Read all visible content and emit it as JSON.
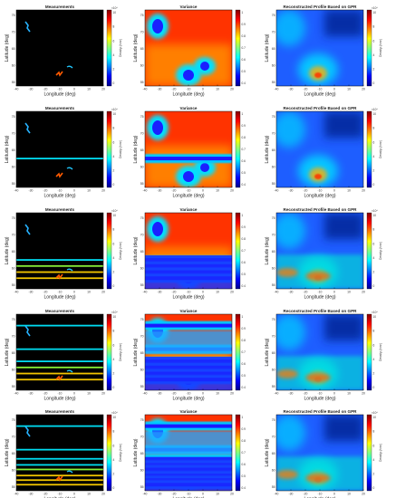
{
  "figure": {
    "colormap": "jet",
    "background": "#ffffff"
  },
  "chart_data": [
    {
      "type": "heatmap",
      "row": 1,
      "title": "Measurements",
      "xlabel": "Longitude (deg)",
      "ylabel": "Latitude (deg)",
      "xticks": [
        "-40",
        "-30",
        "-20",
        "-10",
        "0",
        "10",
        "20"
      ],
      "yticks": [
        "75",
        "70",
        "65",
        "60",
        "55"
      ],
      "colorbar": {
        "ticks": [
          "10",
          "8",
          "6",
          "4",
          "2",
          "0"
        ],
        "label": "Density (/cm³)",
        "exponent": "×10⁴"
      },
      "scan_lines": [],
      "features": [
        {
          "name": "patch-northwest",
          "color": "cyan"
        },
        {
          "name": "patch-center",
          "color": "red"
        },
        {
          "name": "patch-east",
          "color": "cyan"
        }
      ]
    },
    {
      "type": "heatmap",
      "row": 1,
      "title": "Variance",
      "xlabel": "Longitude (deg)",
      "ylabel": "Latitude (deg)",
      "xticks": [
        "-40",
        "-30",
        "-20",
        "-10",
        "0",
        "10",
        "20"
      ],
      "yticks": [
        "75",
        "70",
        "65",
        "60",
        "55"
      ],
      "colorbar": {
        "ticks": [
          "1",
          "0.9",
          "0.8",
          "0.7",
          "0.6",
          "0.5",
          "0.4"
        ],
        "label": "",
        "exponent": ""
      },
      "pattern": "high variance everywhere except near measured patches"
    },
    {
      "type": "heatmap",
      "row": 1,
      "title": "Reconstructed Profile Based on GPR",
      "xlabel": "Longitude (deg)",
      "ylabel": "Latitude (deg)",
      "xticks": [
        "-40",
        "-30",
        "-20",
        "-10",
        "0",
        "10",
        "20"
      ],
      "yticks": [
        "75",
        "70",
        "65",
        "60",
        "55"
      ],
      "colorbar": {
        "ticks": [
          "10",
          "8",
          "6",
          "4",
          "2",
          "0"
        ],
        "label": "Density (/cm³)",
        "exponent": "×10⁴"
      }
    },
    {
      "type": "heatmap",
      "row": 2,
      "title": "Measurements",
      "xlabel": "Longitude (deg)",
      "ylabel": "Latitude (deg)",
      "xticks": [
        "-40",
        "-30",
        "-20",
        "-10",
        "0",
        "10",
        "20"
      ],
      "yticks": [
        "75",
        "70",
        "65",
        "60",
        "55"
      ],
      "colorbar": {
        "ticks": [
          "10",
          "8",
          "6",
          "4",
          "2",
          "0"
        ],
        "label": "Density (/cm³)",
        "exponent": "×10⁴"
      },
      "scan_lines": [
        0.62
      ]
    },
    {
      "type": "heatmap",
      "row": 2,
      "title": "Variance",
      "xlabel": "Longitude (deg)",
      "ylabel": "Latitude (deg)",
      "xticks": [
        "-40",
        "-30",
        "-20",
        "-10",
        "0",
        "10",
        "20"
      ],
      "yticks": [
        "75",
        "70",
        "65",
        "60",
        "55"
      ],
      "colorbar": {
        "ticks": [
          "1",
          "0.9",
          "0.8",
          "0.7",
          "0.6",
          "0.5",
          "0.4"
        ],
        "label": "",
        "exponent": ""
      }
    },
    {
      "type": "heatmap",
      "row": 2,
      "title": "Reconstructed Profile Based on GPR",
      "xlabel": "Longitude (deg)",
      "ylabel": "Latitude (deg)",
      "xticks": [
        "-40",
        "-30",
        "-20",
        "-10",
        "0",
        "10",
        "20"
      ],
      "yticks": [
        "75",
        "70",
        "65",
        "60",
        "55"
      ],
      "colorbar": {
        "ticks": [
          "10",
          "8",
          "6",
          "4",
          "2",
          "0"
        ],
        "label": "Density (/cm³)",
        "exponent": "×10⁴"
      }
    },
    {
      "type": "heatmap",
      "row": 3,
      "title": "Measurements",
      "xlabel": "Longitude (deg)",
      "ylabel": "Latitude (deg)",
      "xticks": [
        "-40",
        "-30",
        "-20",
        "-10",
        "0",
        "10",
        "20"
      ],
      "yticks": [
        "75",
        "70",
        "65",
        "60",
        "55"
      ],
      "colorbar": {
        "ticks": [
          "10",
          "8",
          "6",
          "4",
          "2",
          "0"
        ],
        "label": "Density (/cm³)",
        "exponent": "×10⁴"
      },
      "scan_lines": [
        0.62,
        0.7,
        0.78,
        0.86
      ]
    },
    {
      "type": "heatmap",
      "row": 3,
      "title": "Variance",
      "xlabel": "Longitude (deg)",
      "ylabel": "Latitude (deg)",
      "xticks": [
        "-40",
        "-30",
        "-20",
        "-10",
        "0",
        "10",
        "20"
      ],
      "yticks": [
        "75",
        "70",
        "65",
        "60",
        "55"
      ],
      "colorbar": {
        "ticks": [
          "1",
          "0.9",
          "0.8",
          "0.7",
          "0.6",
          "0.5",
          "0.4"
        ],
        "label": "",
        "exponent": ""
      }
    },
    {
      "type": "heatmap",
      "row": 3,
      "title": "Reconstructed Profile Based on GPR",
      "xlabel": "Longitude (deg)",
      "ylabel": "Latitude (deg)",
      "xticks": [
        "-40",
        "-30",
        "-20",
        "-10",
        "0",
        "10",
        "20"
      ],
      "yticks": [
        "75",
        "70",
        "65",
        "60",
        "55"
      ],
      "colorbar": {
        "ticks": [
          "10",
          "8",
          "6",
          "4",
          "2",
          "0"
        ],
        "label": "Density (/cm³)",
        "exponent": "×10⁴"
      }
    },
    {
      "type": "heatmap",
      "row": 4,
      "title": "Measurements",
      "xlabel": "Longitude (deg)",
      "ylabel": "Latitude (deg)",
      "xticks": [
        "-40",
        "-30",
        "-20",
        "-10",
        "0",
        "10",
        "20"
      ],
      "yticks": [
        "75",
        "70",
        "65",
        "60",
        "55"
      ],
      "colorbar": {
        "ticks": [
          "10",
          "8",
          "6",
          "4",
          "2",
          "0"
        ],
        "label": "Density (/cm³)",
        "exponent": "×10⁴"
      },
      "scan_lines": [
        0.15,
        0.46,
        0.62,
        0.7,
        0.78,
        0.86
      ]
    },
    {
      "type": "heatmap",
      "row": 4,
      "title": "Variance",
      "xlabel": "Longitude (deg)",
      "ylabel": "Latitude (deg)",
      "xticks": [
        "-40",
        "-30",
        "-20",
        "-10",
        "0",
        "10",
        "20"
      ],
      "yticks": [
        "75",
        "70",
        "65",
        "60",
        "55"
      ],
      "colorbar": {
        "ticks": [
          "1",
          "0.9",
          "0.8",
          "0.7",
          "0.6",
          "0.5",
          "0.4"
        ],
        "label": "",
        "exponent": ""
      }
    },
    {
      "type": "heatmap",
      "row": 4,
      "title": "Reconstructed Profile Based on GPR",
      "xlabel": "Longitude (deg)",
      "ylabel": "Latitude (deg)",
      "xticks": [
        "-40",
        "-30",
        "-20",
        "-10",
        "0",
        "10",
        "20"
      ],
      "yticks": [
        "75",
        "70",
        "65",
        "60",
        "55"
      ],
      "colorbar": {
        "ticks": [
          "10",
          "8",
          "6",
          "4",
          "2",
          "0"
        ],
        "label": "Density (/cm³)",
        "exponent": "×10⁴"
      }
    },
    {
      "type": "heatmap",
      "row": 5,
      "title": "Measurements",
      "xlabel": "Longitude (deg)",
      "ylabel": "Latitude (deg)",
      "xticks": [
        "-40",
        "-30",
        "-20",
        "-10",
        "0",
        "10",
        "20"
      ],
      "yticks": [
        "75",
        "70",
        "65",
        "60",
        "55"
      ],
      "colorbar": {
        "ticks": [
          "10",
          "8",
          "6",
          "4",
          "2",
          "0"
        ],
        "label": "Density (/cm³)",
        "exponent": "×10⁴"
      },
      "scan_lines": [
        0.15,
        0.46,
        0.58,
        0.66,
        0.72,
        0.8,
        0.86,
        0.92
      ]
    },
    {
      "type": "heatmap",
      "row": 5,
      "title": "Variance",
      "xlabel": "Longitude (deg)",
      "ylabel": "Latitude (deg)",
      "xticks": [
        "-40",
        "-30",
        "-20",
        "-10",
        "0",
        "10",
        "20"
      ],
      "yticks": [
        "75",
        "70",
        "65",
        "60",
        "55"
      ],
      "colorbar": {
        "ticks": [
          "1",
          "0.9",
          "0.8",
          "0.7",
          "0.6",
          "0.5",
          "0.4"
        ],
        "label": "",
        "exponent": ""
      }
    },
    {
      "type": "heatmap",
      "row": 5,
      "title": "Reconstructed Profile Based on GPR",
      "xlabel": "Longitude (deg)",
      "ylabel": "Latitude (deg)",
      "xticks": [
        "-40",
        "-30",
        "-20",
        "-10",
        "0",
        "10",
        "20"
      ],
      "yticks": [
        "75",
        "70",
        "65",
        "60",
        "55"
      ],
      "colorbar": {
        "ticks": [
          "10",
          "8",
          "6",
          "4",
          "2",
          "0"
        ],
        "label": "Density (/cm³)",
        "exponent": "×10⁴"
      }
    }
  ]
}
